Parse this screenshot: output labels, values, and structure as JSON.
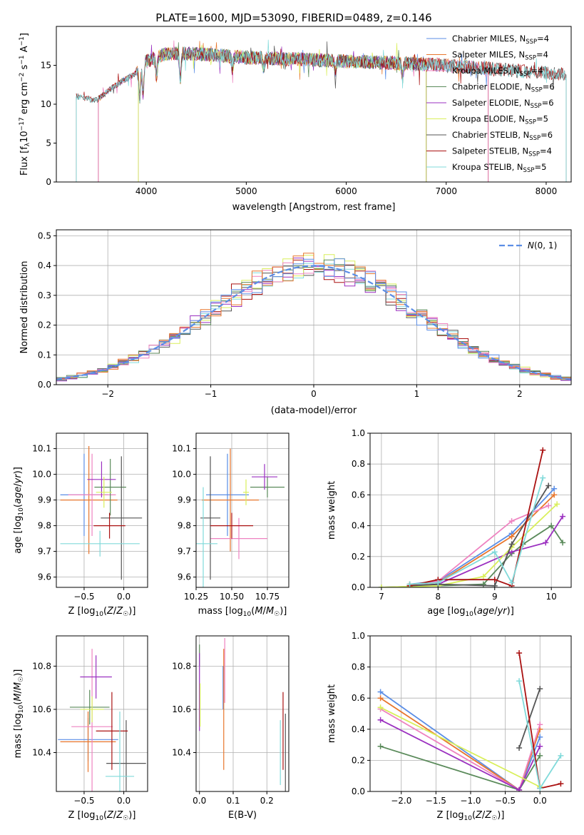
{
  "figure": {
    "title": "PLATE=1600, MJD=53090, FIBERID=0489, z=0.146"
  },
  "colors": {
    "Chabrier MILES": "#5b8ee6",
    "Salpeter MILES": "#e8762c",
    "Kroupa MILES": "#ee82c0",
    "Chabrier ELODIE": "#5a8a5a",
    "Salpeter ELODIE": "#9b30c0",
    "Kroupa ELODIE": "#d9ef5a",
    "Chabrier STELIB": "#555555",
    "Salpeter STELIB": "#aa1111",
    "Kroupa STELIB": "#80dada"
  },
  "chart_data": [
    {
      "id": "spectrum",
      "type": "line",
      "title": "PLATE=1600, MJD=53090, FIBERID=0489, z=0.146",
      "xlabel": "wavelength [Angstrom, rest frame]",
      "ylabel": "Flux [f_λ 10^-17 erg cm^-2 s^-1 A^-1]",
      "xlim": [
        3100,
        8250
      ],
      "ylim": [
        0,
        20
      ],
      "xticks": [
        4000,
        5000,
        6000,
        7000,
        8000
      ],
      "yticks": [
        0,
        5,
        10,
        15
      ],
      "grid": false,
      "legend": "upper-right",
      "data_envelope": {
        "x": [
          3300,
          3500,
          3700,
          3900,
          4000,
          4200,
          4500,
          5000,
          5500,
          6000,
          6500,
          7000,
          7500,
          8000,
          8200
        ],
        "y": [
          11.0,
          10.5,
          12.5,
          14.0,
          15.5,
          16.5,
          16.5,
          16.0,
          15.8,
          15.5,
          15.3,
          15.0,
          14.5,
          14.0,
          13.8
        ]
      },
      "series": [
        {
          "name": "Chabrier MILES",
          "label_prefix": "Chabrier MILES, N",
          "nssp": "4",
          "range": [
            3520,
            7420
          ]
        },
        {
          "name": "Salpeter MILES",
          "label_prefix": "Salpeter MILES, N",
          "nssp": "4",
          "range": [
            3520,
            7420
          ]
        },
        {
          "name": "Kroupa MILES",
          "label_prefix": "Kroupa MILES, N",
          "nssp": "4",
          "range": [
            3520,
            7420
          ]
        },
        {
          "name": "Chabrier ELODIE",
          "label_prefix": "Chabrier ELODIE, N",
          "nssp": "6",
          "range": [
            3920,
            6800
          ]
        },
        {
          "name": "Salpeter ELODIE",
          "label_prefix": "Salpeter ELODIE, N",
          "nssp": "6",
          "range": [
            3920,
            6800
          ]
        },
        {
          "name": "Kroupa ELODIE",
          "label_prefix": "Kroupa ELODIE, N",
          "nssp": "5",
          "range": [
            3920,
            6800
          ]
        },
        {
          "name": "Chabrier STELIB",
          "label_prefix": "Chabrier STELIB, N",
          "nssp": "6",
          "range": [
            3300,
            8200
          ]
        },
        {
          "name": "Salpeter STELIB",
          "label_prefix": "Salpeter STELIB, N",
          "nssp": "4",
          "range": [
            3300,
            8200
          ]
        },
        {
          "name": "Kroupa STELIB",
          "label_prefix": "Kroupa STELIB, N",
          "nssp": "5",
          "range": [
            3300,
            8200
          ]
        }
      ]
    },
    {
      "id": "residuals",
      "type": "histogram",
      "xlabel": "(data-model)/error",
      "ylabel": "Normed distribution",
      "xlim": [
        -2.5,
        2.5
      ],
      "ylim": [
        0,
        0.52
      ],
      "xticks": [
        -2,
        -1,
        0,
        1,
        2
      ],
      "yticks": [
        0.0,
        0.1,
        0.2,
        0.3,
        0.4,
        0.5
      ],
      "grid": true,
      "legend": "upper-right",
      "legend_label": "N(0,1)",
      "bin_width": 0.1,
      "reference_curve": {
        "name": "N(0,1)",
        "type": "gaussian",
        "mean": 0,
        "sigma": 1
      }
    },
    {
      "id": "age-Z",
      "type": "errorbar",
      "xlabel": "Z [log10(Z/Z☉)]",
      "ylabel": "age  [log10(age/yr)]",
      "xlim": [
        -0.85,
        0.3
      ],
      "ylim": [
        9.56,
        10.16
      ],
      "xticks": [
        -0.5,
        0.0
      ],
      "yticks": [
        9.6,
        9.7,
        9.8,
        9.9,
        10.0,
        10.1
      ],
      "grid": true,
      "points": [
        {
          "name": "Chabrier MILES",
          "x": -0.5,
          "xerr": 0.3,
          "y": 9.92,
          "yerr": 0.16
        },
        {
          "name": "Salpeter MILES",
          "x": -0.44,
          "xerr": 0.36,
          "y": 9.9,
          "yerr": 0.21
        },
        {
          "name": "Kroupa MILES",
          "x": -0.4,
          "xerr": 0.3,
          "y": 9.92,
          "yerr": 0.16
        },
        {
          "name": "Chabrier ELODIE",
          "x": -0.17,
          "xerr": 0.2,
          "y": 9.95,
          "yerr": 0.11
        },
        {
          "name": "Salpeter ELODIE",
          "x": -0.28,
          "xerr": 0.18,
          "y": 9.98,
          "yerr": 0.07
        },
        {
          "name": "Kroupa ELODIE",
          "x": -0.25,
          "xerr": 0.1,
          "y": 9.93,
          "yerr": 0.06
        },
        {
          "name": "Chabrier STELIB",
          "x": -0.03,
          "xerr": 0.26,
          "y": 9.83,
          "yerr": 0.24
        },
        {
          "name": "Salpeter STELIB",
          "x": -0.18,
          "xerr": 0.2,
          "y": 9.8,
          "yerr": 0.05
        },
        {
          "name": "Kroupa STELIB",
          "x": -0.3,
          "xerr": 0.5,
          "y": 9.73,
          "yerr": 0.05
        }
      ]
    },
    {
      "id": "age-mass",
      "type": "errorbar",
      "xlabel": "mass [log10(M/M☉)]",
      "ylabel": "",
      "xlim": [
        10.25,
        10.9
      ],
      "ylim": [
        9.56,
        10.16
      ],
      "xticks": [
        10.25,
        10.5,
        10.75
      ],
      "yticks": [
        9.6,
        9.7,
        9.8,
        9.9,
        10.0,
        10.1
      ],
      "grid": true,
      "points": [
        {
          "name": "Chabrier MILES",
          "x": 10.47,
          "xerr": 0.15,
          "y": 9.92,
          "yerr": 0.16
        },
        {
          "name": "Salpeter MILES",
          "x": 10.49,
          "xerr": 0.2,
          "y": 9.9,
          "yerr": 0.2
        },
        {
          "name": "Kroupa MILES",
          "x": 10.55,
          "xerr": 0.2,
          "y": 9.75,
          "yerr": 0.08
        },
        {
          "name": "Chabrier ELODIE",
          "x": 10.75,
          "xerr": 0.12,
          "y": 9.95,
          "yerr": 0.04
        },
        {
          "name": "Salpeter ELODIE",
          "x": 10.73,
          "xerr": 0.09,
          "y": 9.99,
          "yerr": 0.05
        },
        {
          "name": "Kroupa ELODIE",
          "x": 10.6,
          "xerr": 0.02,
          "y": 9.93,
          "yerr": 0.05
        },
        {
          "name": "Chabrier STELIB",
          "x": 10.35,
          "xerr": 0.07,
          "y": 9.83,
          "yerr": 0.24
        },
        {
          "name": "Salpeter STELIB",
          "x": 10.5,
          "xerr": 0.15,
          "y": 9.8,
          "yerr": 0.05
        },
        {
          "name": "Kroupa STELIB",
          "x": 10.3,
          "xerr": 0.1,
          "y": 9.73,
          "yerr": 0.22
        }
      ]
    },
    {
      "id": "mass-weight-age",
      "type": "line",
      "xlabel": "age  [log10(age/yr)]",
      "ylabel": "mass weight",
      "xlim": [
        6.8,
        10.35
      ],
      "ylim": [
        0,
        1.0
      ],
      "xticks": [
        7,
        8,
        9,
        10
      ],
      "yticks": [
        0.0,
        0.2,
        0.4,
        0.6,
        0.8,
        1.0
      ],
      "grid": true,
      "series": [
        {
          "name": "Chabrier MILES",
          "x": [
            7.5,
            8.0,
            9.3,
            10.05
          ],
          "y": [
            0.02,
            0.04,
            0.35,
            0.64
          ]
        },
        {
          "name": "Salpeter MILES",
          "x": [
            7.5,
            8.0,
            9.3,
            10.05
          ],
          "y": [
            0.02,
            0.03,
            0.33,
            0.6
          ]
        },
        {
          "name": "Kroupa MILES",
          "x": [
            7.5,
            8.0,
            9.3,
            9.95
          ],
          "y": [
            0.01,
            0.04,
            0.43,
            0.53
          ]
        },
        {
          "name": "Chabrier ELODIE",
          "x": [
            7.0,
            8.0,
            8.8,
            9.3,
            9.5,
            10.0,
            10.2
          ],
          "y": [
            0.0,
            0.01,
            0.02,
            0.22,
            0.28,
            0.4,
            0.29
          ]
        },
        {
          "name": "Salpeter ELODIE",
          "x": [
            7.5,
            8.0,
            9.3,
            9.9,
            10.2
          ],
          "y": [
            0.01,
            0.02,
            0.23,
            0.29,
            0.46
          ]
        },
        {
          "name": "Kroupa ELODIE",
          "x": [
            7.0,
            8.0,
            8.8,
            9.3,
            10.1
          ],
          "y": [
            0.0,
            0.01,
            0.07,
            0.26,
            0.54
          ]
        },
        {
          "name": "Chabrier STELIB",
          "x": [
            7.5,
            8.0,
            9.0,
            9.3,
            9.95
          ],
          "y": [
            0.01,
            0.02,
            0.01,
            0.28,
            0.66
          ]
        },
        {
          "name": "Salpeter STELIB",
          "x": [
            7.5,
            8.0,
            9.0,
            9.3,
            9.85
          ],
          "y": [
            0.01,
            0.05,
            0.05,
            0.01,
            0.89
          ]
        },
        {
          "name": "Kroupa STELIB",
          "x": [
            7.5,
            8.0,
            9.0,
            9.3,
            9.85
          ],
          "y": [
            0.02,
            0.03,
            0.23,
            0.03,
            0.71
          ]
        }
      ]
    },
    {
      "id": "mass-Z",
      "type": "errorbar",
      "xlabel": "Z [log10(Z/Z☉)]",
      "ylabel": "mass [log10(M/M☉)]",
      "xlim": [
        -0.85,
        0.3
      ],
      "ylim": [
        10.22,
        10.94
      ],
      "xticks": [
        -0.5,
        0.0
      ],
      "yticks": [
        10.4,
        10.6,
        10.8
      ],
      "grid": true,
      "points": [
        {
          "name": "Chabrier MILES",
          "x": -0.45,
          "xerr": 0.38,
          "y": 10.46,
          "yerr": 0.1
        },
        {
          "name": "Salpeter MILES",
          "x": -0.45,
          "xerr": 0.35,
          "y": 10.45,
          "yerr": 0.14
        },
        {
          "name": "Kroupa MILES",
          "x": -0.4,
          "xerr": 0.26,
          "y": 10.52,
          "yerr": 0.36
        },
        {
          "name": "Chabrier ELODIE",
          "x": -0.43,
          "xerr": 0.25,
          "y": 10.61,
          "yerr": 0.08
        },
        {
          "name": "Salpeter ELODIE",
          "x": -0.35,
          "xerr": 0.2,
          "y": 10.75,
          "yerr": 0.1
        },
        {
          "name": "Kroupa ELODIE",
          "x": -0.4,
          "xerr": 0.15,
          "y": 10.6,
          "yerr": 0.06
        },
        {
          "name": "Chabrier STELIB",
          "x": 0.03,
          "xerr": 0.25,
          "y": 10.35,
          "yerr": 0.2
        },
        {
          "name": "Salpeter STELIB",
          "x": -0.15,
          "xerr": 0.2,
          "y": 10.5,
          "yerr": 0.18
        },
        {
          "name": "Kroupa STELIB",
          "x": -0.05,
          "xerr": 0.18,
          "y": 10.29,
          "yerr": 0.3
        }
      ]
    },
    {
      "id": "mass-EBV",
      "type": "errorbar",
      "xlabel": "E(B-V)",
      "ylabel": "",
      "xlim": [
        -0.01,
        0.265
      ],
      "ylim": [
        10.22,
        10.94
      ],
      "xticks": [
        0.0,
        0.1,
        0.2
      ],
      "yticks": [
        10.4,
        10.6,
        10.8
      ],
      "grid": true,
      "points": [
        {
          "name": "Chabrier MILES",
          "x": 0.07,
          "yerr": 0.1,
          "y": 10.7
        },
        {
          "name": "Salpeter MILES",
          "x": 0.072,
          "yerr": 0.28,
          "y": 10.6
        },
        {
          "name": "Kroupa MILES",
          "x": 0.075,
          "yerr": 0.15,
          "y": 10.78
        },
        {
          "name": "Chabrier ELODIE",
          "x": 0.0,
          "yerr": 0.05,
          "y": 10.85
        },
        {
          "name": "Salpeter ELODIE",
          "x": 0.0,
          "yerr": 0.18,
          "y": 10.68
        },
        {
          "name": "Kroupa ELODIE",
          "x": 0.002,
          "yerr": 0.1,
          "y": 10.62
        },
        {
          "name": "Chabrier STELIB",
          "x": 0.255,
          "yerr": 0.18,
          "y": 10.4
        },
        {
          "name": "Salpeter STELIB",
          "x": 0.248,
          "yerr": 0.18,
          "y": 10.5
        },
        {
          "name": "Kroupa STELIB",
          "x": 0.24,
          "yerr": 0.15,
          "y": 10.4
        }
      ]
    },
    {
      "id": "mass-weight-Z",
      "type": "line",
      "xlabel": "Z [log10(Z/Z☉)]",
      "ylabel": "mass weight",
      "xlim": [
        -2.45,
        0.45
      ],
      "ylim": [
        0,
        1.0
      ],
      "xticks": [
        -2.0,
        -1.5,
        -1.0,
        -0.5,
        0.0
      ],
      "yticks": [
        0.0,
        0.2,
        0.4,
        0.6,
        0.8,
        1.0
      ],
      "grid": true,
      "series": [
        {
          "name": "Chabrier MILES",
          "x": [
            -2.3,
            -0.3,
            0.0
          ],
          "y": [
            0.64,
            0.01,
            0.35
          ]
        },
        {
          "name": "Salpeter MILES",
          "x": [
            -2.3,
            -0.3,
            0.0
          ],
          "y": [
            0.6,
            0.01,
            0.4
          ]
        },
        {
          "name": "Kroupa MILES",
          "x": [
            -2.3,
            -0.3,
            0.0
          ],
          "y": [
            0.53,
            0.01,
            0.43
          ]
        },
        {
          "name": "Chabrier ELODIE",
          "x": [
            -2.3,
            -0.3,
            0.0
          ],
          "y": [
            0.29,
            0.01,
            0.23
          ]
        },
        {
          "name": "Salpeter ELODIE",
          "x": [
            -2.3,
            -0.3,
            0.0
          ],
          "y": [
            0.46,
            0.01,
            0.29
          ]
        },
        {
          "name": "Kroupa ELODIE",
          "x": [
            -2.3,
            0.0
          ],
          "y": [
            0.54,
            0.03
          ]
        },
        {
          "name": "Chabrier STELIB",
          "x": [
            -0.3,
            0.0
          ],
          "y": [
            0.28,
            0.66
          ]
        },
        {
          "name": "Salpeter STELIB",
          "x": [
            -0.3,
            0.0,
            0.3
          ],
          "y": [
            0.89,
            0.02,
            0.05
          ]
        },
        {
          "name": "Kroupa STELIB",
          "x": [
            -0.3,
            0.0,
            0.3
          ],
          "y": [
            0.71,
            0.02,
            0.23
          ]
        }
      ]
    }
  ]
}
